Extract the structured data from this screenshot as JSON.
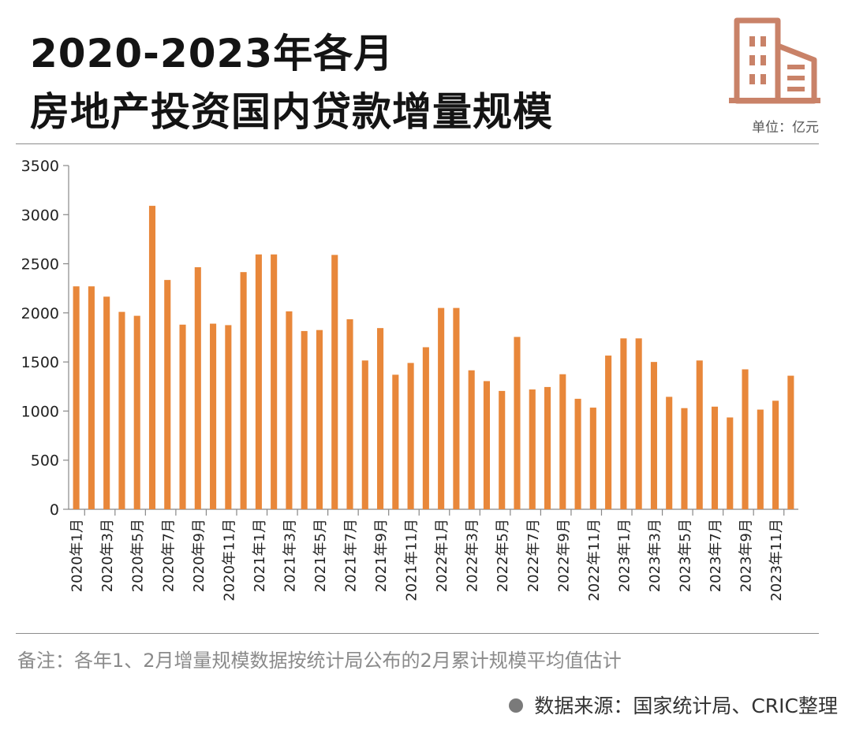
{
  "header": {
    "title_line1": "2020-2023年各月",
    "title_line2": "房地产投资国内贷款增量规模",
    "unit": "单位：亿元",
    "logo_icon": "building-icon"
  },
  "footer": {
    "note": "备注：各年1、2月增量规模数据按统计局公布的2月累计规模平均值估计",
    "source": "数据来源：国家统计局、CRIC整理"
  },
  "colors": {
    "bar": "#E8873A",
    "logo": "#C98268",
    "axis": "#888888"
  },
  "chart_data": {
    "type": "bar",
    "title": "2020-2023年各月 房地产投资国内贷款增量规模",
    "unit": "亿元",
    "ylim": [
      0,
      3500
    ],
    "yticks": [
      0,
      500,
      1000,
      1500,
      2000,
      2500,
      3000,
      3500
    ],
    "grid": false,
    "categories": [
      "2020年1月",
      "2020年2月",
      "2020年3月",
      "2020年4月",
      "2020年5月",
      "2020年6月",
      "2020年7月",
      "2020年8月",
      "2020年9月",
      "2020年10月",
      "2020年11月",
      "2020年12月",
      "2021年1月",
      "2021年2月",
      "2021年3月",
      "2021年4月",
      "2021年5月",
      "2021年6月",
      "2021年7月",
      "2021年8月",
      "2021年9月",
      "2021年10月",
      "2021年11月",
      "2021年12月",
      "2022年1月",
      "2022年2月",
      "2022年3月",
      "2022年4月",
      "2022年5月",
      "2022年6月",
      "2022年7月",
      "2022年8月",
      "2022年9月",
      "2022年10月",
      "2022年11月",
      "2022年12月",
      "2023年1月",
      "2023年2月",
      "2023年3月",
      "2023年4月",
      "2023年5月",
      "2023年6月",
      "2023年7月",
      "2023年8月",
      "2023年9月",
      "2023年10月",
      "2023年11月",
      "2023年12月"
    ],
    "visible_tick_labels": [
      "2020年1月",
      "2020年3月",
      "2020年5月",
      "2020年7月",
      "2020年9月",
      "2020年11月",
      "2021年1月",
      "2021年3月",
      "2021年5月",
      "2021年7月",
      "2021年9月",
      "2021年11月",
      "2022年1月",
      "2022年3月",
      "2022年5月",
      "2022年7月",
      "2022年9月",
      "2022年11月",
      "2023年1月",
      "2023年3月",
      "2023年5月",
      "2023年7月",
      "2023年9月",
      "2023年11月"
    ],
    "values": [
      2270,
      2270,
      2165,
      2010,
      1970,
      3090,
      2335,
      1880,
      2465,
      1890,
      1875,
      2415,
      2595,
      2595,
      2015,
      1815,
      1825,
      2590,
      1935,
      1515,
      1845,
      1370,
      1490,
      1650,
      2050,
      2050,
      1415,
      1305,
      1205,
      1755,
      1220,
      1245,
      1375,
      1125,
      1035,
      1565,
      1740,
      1740,
      1500,
      1145,
      1030,
      1515,
      1045,
      935,
      1425,
      1015,
      1105,
      1360
    ]
  }
}
